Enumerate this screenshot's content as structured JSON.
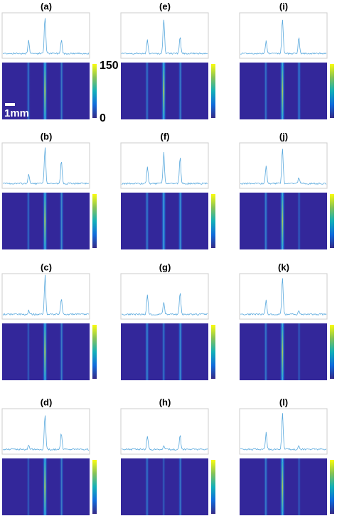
{
  "panels": [
    {
      "label": "(a)"
    },
    {
      "label": "(b)"
    },
    {
      "label": "(c)"
    },
    {
      "label": "(d)"
    },
    {
      "label": "(e)"
    },
    {
      "label": "(f)"
    },
    {
      "label": "(g)"
    },
    {
      "label": "(h)"
    },
    {
      "label": "(i)"
    },
    {
      "label": "(j)"
    },
    {
      "label": "(k)"
    },
    {
      "label": "(l)"
    }
  ],
  "colorbar": {
    "max": 150,
    "min": 0
  },
  "scale_bar": "1mm"
}
